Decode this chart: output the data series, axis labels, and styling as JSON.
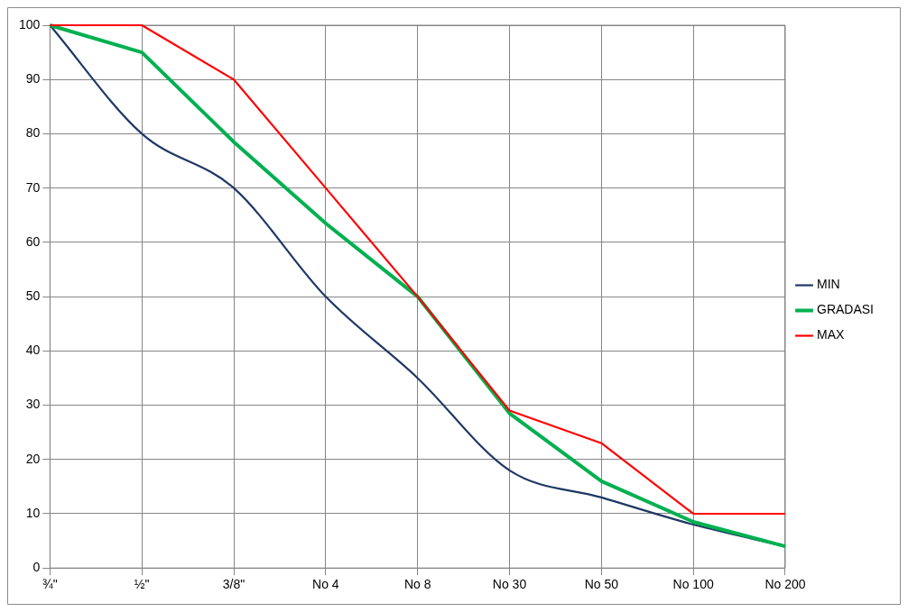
{
  "chart_data": {
    "type": "line",
    "categories": [
      "¾\"",
      "½\"",
      "3/8\"",
      "No 4",
      "No 8",
      "No 30",
      "No 50",
      "No 100",
      "No 200"
    ],
    "series": [
      {
        "name": "MIN",
        "color": "#1f3864",
        "values": [
          100,
          80,
          70,
          50,
          35,
          18,
          13,
          8,
          4
        ]
      },
      {
        "name": "GRADASI",
        "color": "#00b050",
        "values": [
          100,
          95,
          78.5,
          63.5,
          50,
          28.5,
          16,
          8.5,
          4
        ]
      },
      {
        "name": "MAX",
        "color": "#ff0000",
        "values": [
          100,
          100,
          90,
          70,
          50,
          29,
          23,
          10,
          10
        ]
      }
    ],
    "ylim": [
      0,
      100
    ],
    "yticks": [
      0,
      10,
      20,
      30,
      40,
      50,
      60,
      70,
      80,
      90,
      100
    ],
    "grid": true,
    "legend": "right",
    "marker": "none",
    "line_style": "solid"
  }
}
